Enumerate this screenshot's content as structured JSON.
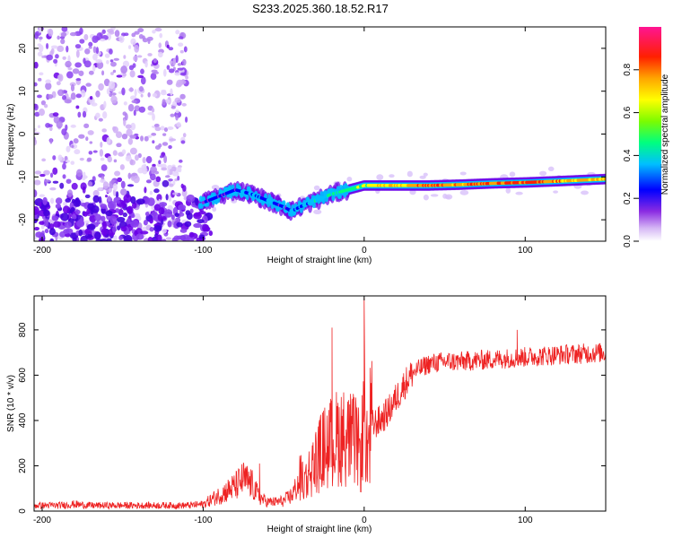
{
  "title": "S233.2025.360.18.52.R17",
  "chart_data": [
    {
      "type": "heatmap",
      "title": "S233.2025.360.18.52.R17",
      "xlabel": "Height of straight line (km)",
      "ylabel": "Frequency (Hz)",
      "xlim": [
        -205,
        150
      ],
      "ylim": [
        -25,
        25
      ],
      "x_ticks": [
        -200,
        -100,
        0,
        100
      ],
      "y_ticks": [
        -20,
        -10,
        0,
        10,
        20
      ],
      "colorbar": {
        "label": "Normalized spectral amplitude",
        "range": [
          0,
          1
        ],
        "ticks": [
          0.0,
          0.2,
          0.4,
          0.6,
          0.8
        ],
        "tick_labels": [
          "0.0",
          "0.2",
          "0.4",
          "0.6",
          "0.8"
        ],
        "colormap": [
          "#ffffff",
          "#8a2be2",
          "#0000ff",
          "#00bfff",
          "#00ff7f",
          "#adff2f",
          "#ffff00",
          "#ffa500",
          "#ff0000",
          "#ff1493"
        ]
      },
      "ridge": {
        "description": "dominant frequency track",
        "x": [
          -100,
          -90,
          -80,
          -70,
          -60,
          -50,
          -45,
          -40,
          -30,
          -20,
          -10,
          -5,
          0,
          10,
          20,
          40,
          60,
          80,
          100,
          120,
          150
        ],
        "y": [
          -16,
          -14.5,
          -13,
          -14,
          -15.5,
          -17,
          -18,
          -17,
          -15.5,
          -14,
          -13,
          -12.5,
          -12,
          -12,
          -12,
          -12,
          -11.8,
          -11.5,
          -11.3,
          -11,
          -10.5
        ],
        "amplitude": [
          0.2,
          0.3,
          0.3,
          0.35,
          0.35,
          0.3,
          0.35,
          0.35,
          0.4,
          0.45,
          0.5,
          0.6,
          0.65,
          0.7,
          0.75,
          0.85,
          0.8,
          0.85,
          0.9,
          0.8,
          0.75
        ]
      }
    },
    {
      "type": "line",
      "xlabel": "Height of straight line (km)",
      "ylabel": "SNR (10 * v/v)",
      "xlim": [
        -205,
        150
      ],
      "ylim": [
        0,
        950
      ],
      "x_ticks": [
        -200,
        -100,
        0,
        100
      ],
      "y_ticks": [
        0,
        200,
        400,
        600,
        800
      ],
      "series": [
        {
          "name": "SNR",
          "color": "#ee2222",
          "x": [
            -205,
            -190,
            -180,
            -170,
            -150,
            -130,
            -110,
            -100,
            -90,
            -80,
            -75,
            -70,
            -65,
            -60,
            -55,
            -50,
            -45,
            -40,
            -35,
            -30,
            -25,
            -20,
            -15,
            -10,
            -5,
            -2,
            0,
            2,
            5,
            10,
            15,
            20,
            25,
            30,
            40,
            50,
            60,
            80,
            100,
            120,
            150
          ],
          "y": [
            25,
            25,
            30,
            25,
            25,
            25,
            25,
            30,
            70,
            110,
            140,
            120,
            60,
            40,
            40,
            45,
            70,
            130,
            200,
            280,
            350,
            380,
            420,
            400,
            380,
            300,
            560,
            300,
            380,
            400,
            440,
            500,
            560,
            610,
            650,
            660,
            660,
            670,
            680,
            690,
            700
          ]
        }
      ],
      "spikes": [
        {
          "x": -65,
          "y": 210
        },
        {
          "x": -20,
          "y": 810
        },
        {
          "x": 0,
          "y": 940
        },
        {
          "x": 95,
          "y": 800
        }
      ]
    }
  ]
}
